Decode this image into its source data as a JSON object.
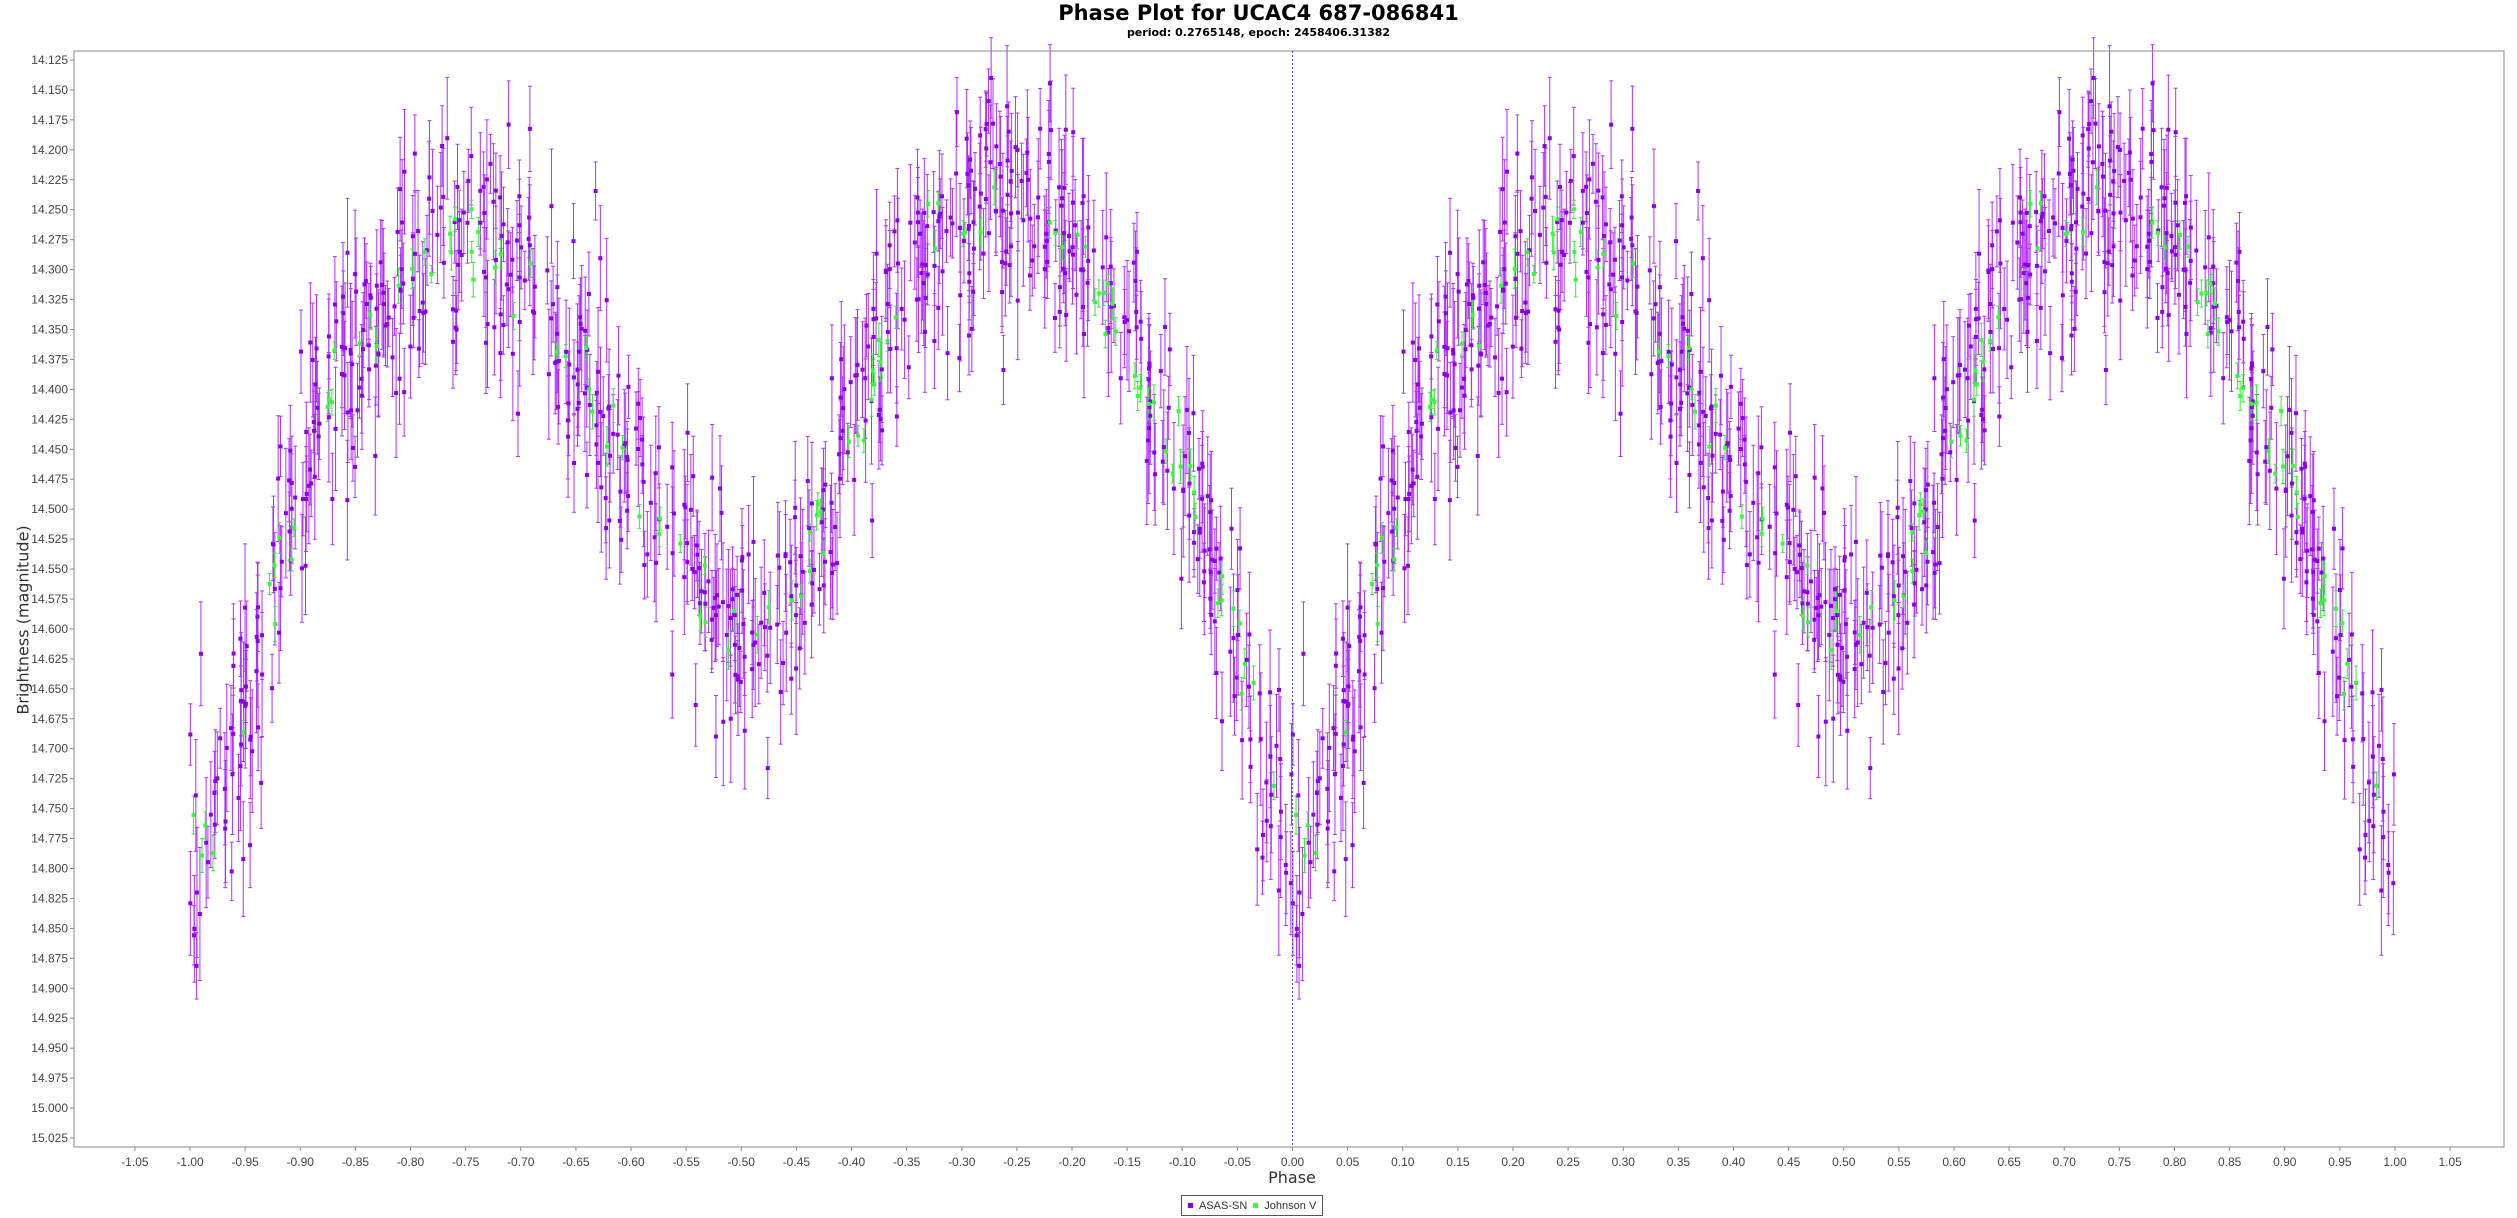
{
  "chart_data": {
    "type": "scatter",
    "title": "Phase Plot for UCAC4 687-086841",
    "subtitle": "period: 0.2765148, epoch: 2458406.31382",
    "xlabel": "Phase",
    "ylabel": "Brightness (magnitude)",
    "xlim": [
      -1.1,
      1.1
    ],
    "ylim": [
      14.115,
      15.035
    ],
    "y_inverted": true,
    "x_ticks": [
      "-1.05",
      "-1.00",
      "-0.95",
      "-0.90",
      "-0.85",
      "-0.80",
      "-0.75",
      "-0.70",
      "-0.65",
      "-0.60",
      "-0.55",
      "-0.50",
      "-0.45",
      "-0.40",
      "-0.35",
      "-0.30",
      "-0.25",
      "-0.20",
      "-0.15",
      "-0.10",
      "-0.05",
      "0.00",
      "0.05",
      "0.10",
      "0.15",
      "0.20",
      "0.25",
      "0.30",
      "0.35",
      "0.40",
      "0.45",
      "0.50",
      "0.55",
      "0.60",
      "0.65",
      "0.70",
      "0.75",
      "0.80",
      "0.85",
      "0.90",
      "0.95",
      "1.00",
      "1.05"
    ],
    "y_ticks": [
      "14.125",
      "14.150",
      "14.175",
      "14.200",
      "14.225",
      "14.250",
      "14.275",
      "14.300",
      "14.325",
      "14.350",
      "14.375",
      "14.400",
      "14.425",
      "14.450",
      "14.475",
      "14.500",
      "14.525",
      "14.550",
      "14.575",
      "14.600",
      "14.625",
      "14.650",
      "14.675",
      "14.700",
      "14.725",
      "14.750",
      "14.775",
      "14.800",
      "14.825",
      "14.850",
      "14.875",
      "14.900",
      "14.925",
      "14.950",
      "14.975",
      "15.000",
      "15.025"
    ],
    "light_curve": {
      "phase": [
        0.0,
        0.05,
        0.1,
        0.15,
        0.2,
        0.25,
        0.3,
        0.35,
        0.4,
        0.45,
        0.5,
        0.55,
        0.6,
        0.65,
        0.7,
        0.75,
        0.8,
        0.85,
        0.9,
        0.95,
        1.0
      ],
      "magnitude": [
        14.79,
        14.68,
        14.47,
        14.36,
        14.3,
        14.27,
        14.3,
        14.38,
        14.47,
        14.56,
        14.62,
        14.56,
        14.44,
        14.31,
        14.25,
        14.24,
        14.27,
        14.36,
        14.47,
        14.62,
        14.79
      ],
      "note": "phases shown twice: -1.0 to 0.0 and 0.0 to 1.0"
    },
    "series": [
      {
        "name": "ASAS-SN",
        "color": "#8b00e6",
        "errorbar_color": "#b030ff",
        "approx_points_per_cycle": 720,
        "typical_error": 0.04
      },
      {
        "name": "Johnson V",
        "color": "#33ff33",
        "errorbar_color": "#33ee33",
        "approx_points_per_cycle": 110,
        "typical_error": 0.012
      }
    ],
    "marker_line_x": 0.0,
    "legend_position": "bottom-center",
    "grid": false
  }
}
